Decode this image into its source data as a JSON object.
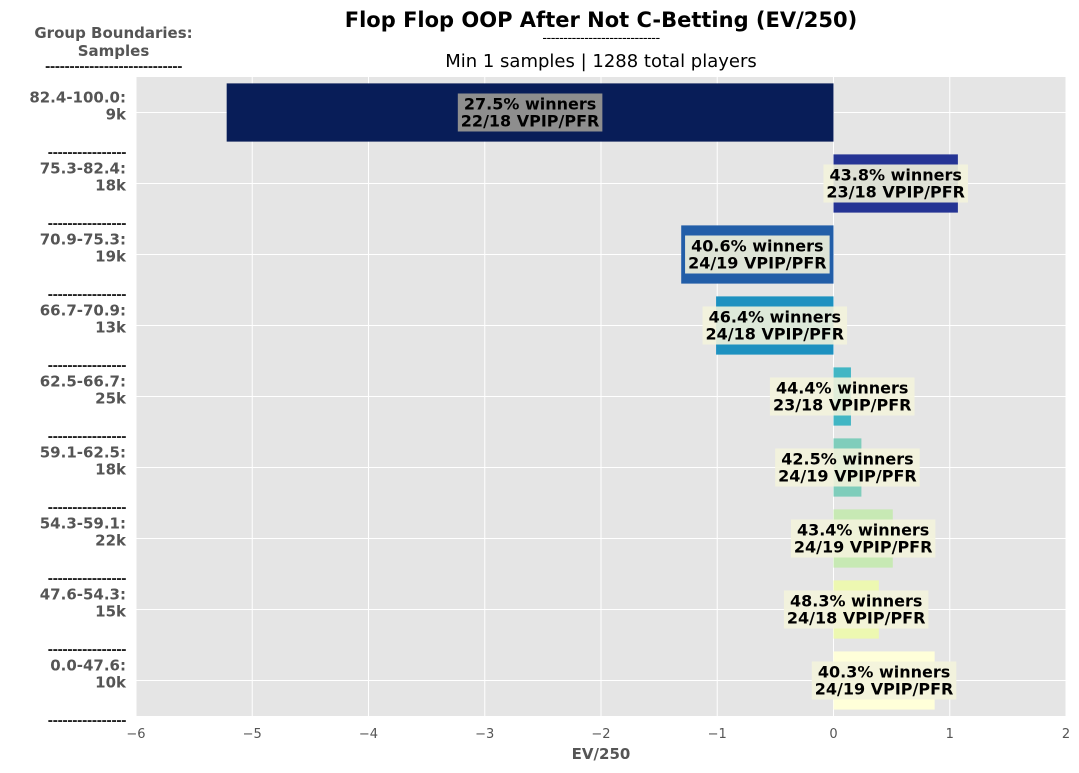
{
  "header": {
    "title": "Flop Flop OOP After Not C-Betting (EV/250)",
    "title_divider": "----------------------------",
    "subtitle": "Min 1 samples | 1288 total players",
    "group_header_line1": "Group Boundaries:",
    "group_header_line2": "Samples",
    "group_header_divider": "----------------------------"
  },
  "chart_data": {
    "type": "bar",
    "orientation": "horizontal",
    "title": "Flop Flop OOP After Not C-Betting (EV/250)",
    "subtitle": "Min 1 samples | 1288 total players",
    "xlabel": "EV/250",
    "ylabel": "",
    "xlim": [
      -6,
      2
    ],
    "xticks": [
      -6,
      -5,
      -4,
      -3,
      -2,
      -1,
      0,
      1,
      2
    ],
    "xtick_labels": [
      "−6",
      "−5",
      "−4",
      "−3",
      "−2",
      "−1",
      "0",
      "1",
      "2"
    ],
    "grid": true,
    "row_separator": "----------------",
    "categories": [
      {
        "range": "82.4-100.0:",
        "samples": "9k"
      },
      {
        "range": "75.3-82.4:",
        "samples": "18k"
      },
      {
        "range": "70.9-75.3:",
        "samples": "19k"
      },
      {
        "range": "66.7-70.9:",
        "samples": "13k"
      },
      {
        "range": "62.5-66.7:",
        "samples": "25k"
      },
      {
        "range": "59.1-62.5:",
        "samples": "18k"
      },
      {
        "range": "54.3-59.1:",
        "samples": "22k"
      },
      {
        "range": "47.6-54.3:",
        "samples": "15k"
      },
      {
        "range": "0.0-47.6:",
        "samples": "10k"
      }
    ],
    "values": [
      -5.22,
      1.07,
      -1.31,
      -1.01,
      0.15,
      0.24,
      0.51,
      0.39,
      0.87
    ],
    "annotations": [
      {
        "winners": "27.5% winners",
        "vpip_pfr": "22/18 VPIP/PFR"
      },
      {
        "winners": "43.8% winners",
        "vpip_pfr": "23/18 VPIP/PFR"
      },
      {
        "winners": "40.6% winners",
        "vpip_pfr": "24/19 VPIP/PFR"
      },
      {
        "winners": "46.4% winners",
        "vpip_pfr": "24/18 VPIP/PFR"
      },
      {
        "winners": "44.4% winners",
        "vpip_pfr": "23/18 VPIP/PFR"
      },
      {
        "winners": "42.5% winners",
        "vpip_pfr": "24/19 VPIP/PFR"
      },
      {
        "winners": "43.4% winners",
        "vpip_pfr": "24/19 VPIP/PFR"
      },
      {
        "winners": "48.3% winners",
        "vpip_pfr": "24/18 VPIP/PFR"
      },
      {
        "winners": "40.3% winners",
        "vpip_pfr": "24/19 VPIP/PFR"
      }
    ],
    "colors": [
      "#081d58",
      "#253494",
      "#225ea8",
      "#1d91c0",
      "#41b6c4",
      "#7fcdbb",
      "#c7e9b4",
      "#edf8b1",
      "#ffffd9"
    ],
    "plot_background": "#e5e5e5",
    "grid_color": "#ffffff"
  }
}
